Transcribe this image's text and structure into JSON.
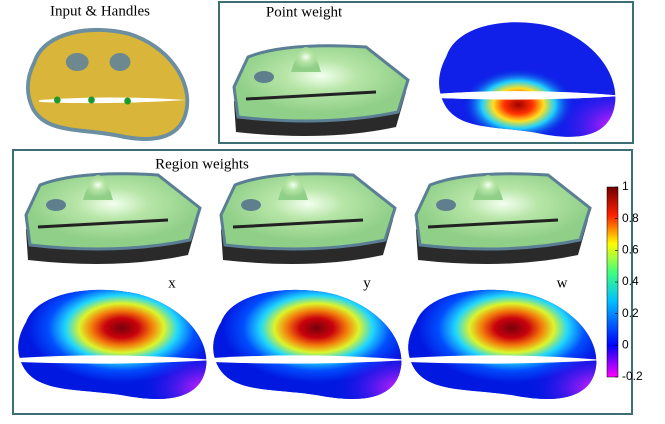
{
  "panels": {
    "input": {
      "title": "Input & Handles"
    },
    "point": {
      "title": "Point weight"
    },
    "region": {
      "title": "Region weights",
      "labels": [
        "x",
        "y",
        "w"
      ]
    }
  },
  "colorbar": {
    "lim": [
      -0.2,
      1
    ],
    "ticks": [
      1,
      0.8,
      0.6,
      0.4,
      0.2,
      0,
      -0.2
    ]
  }
}
